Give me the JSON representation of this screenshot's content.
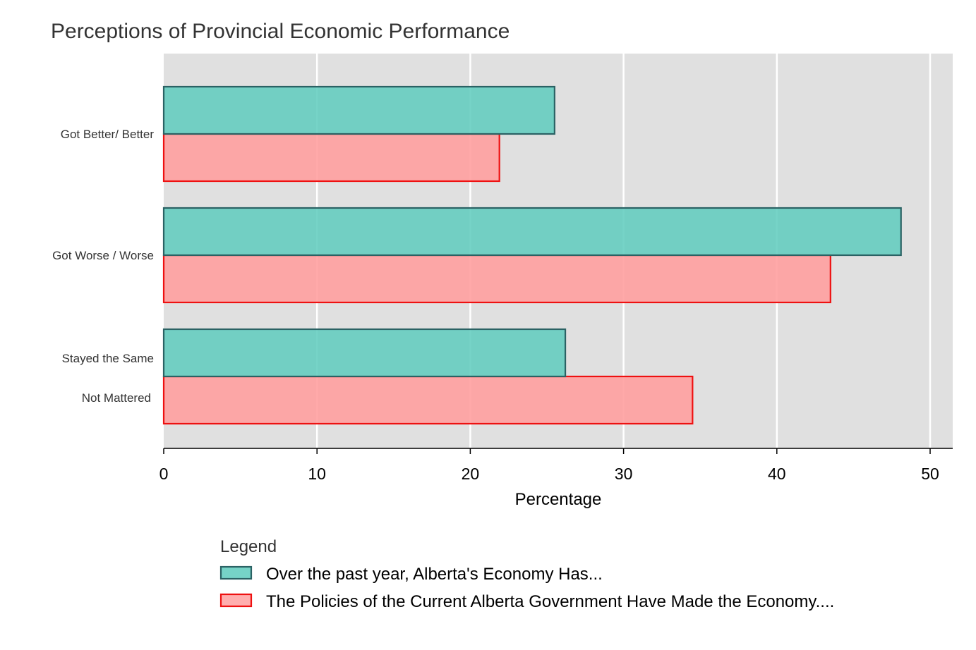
{
  "chart_data": {
    "type": "bar",
    "orientation": "horizontal",
    "title": "Perceptions of Provincial Economic Performance",
    "xlabel": "Percentage",
    "ylabel": "",
    "xlim": [
      0,
      51.5
    ],
    "x_ticks": [
      0,
      10,
      20,
      30,
      40,
      50
    ],
    "grid": true,
    "legend_position": "bottom",
    "legend_title": "Legend",
    "categories": [
      {
        "labels": [
          "Got Better/ Better"
        ]
      },
      {
        "labels": [
          "Got Worse / Worse"
        ]
      },
      {
        "labels": [
          "Stayed the Same",
          "Not Mattered"
        ]
      }
    ],
    "series": [
      {
        "name": "Over the past year, Alberta's Economy Has...",
        "fill": "#5ecbbd",
        "stroke": "#2b6264",
        "values": [
          25.5,
          48.1,
          26.2
        ]
      },
      {
        "name": "The Policies of the Current Alberta Government Have Made the Economy....",
        "fill": "#ffa0a0",
        "stroke": "#ee1111",
        "values": [
          21.9,
          43.5,
          34.5
        ]
      }
    ]
  }
}
